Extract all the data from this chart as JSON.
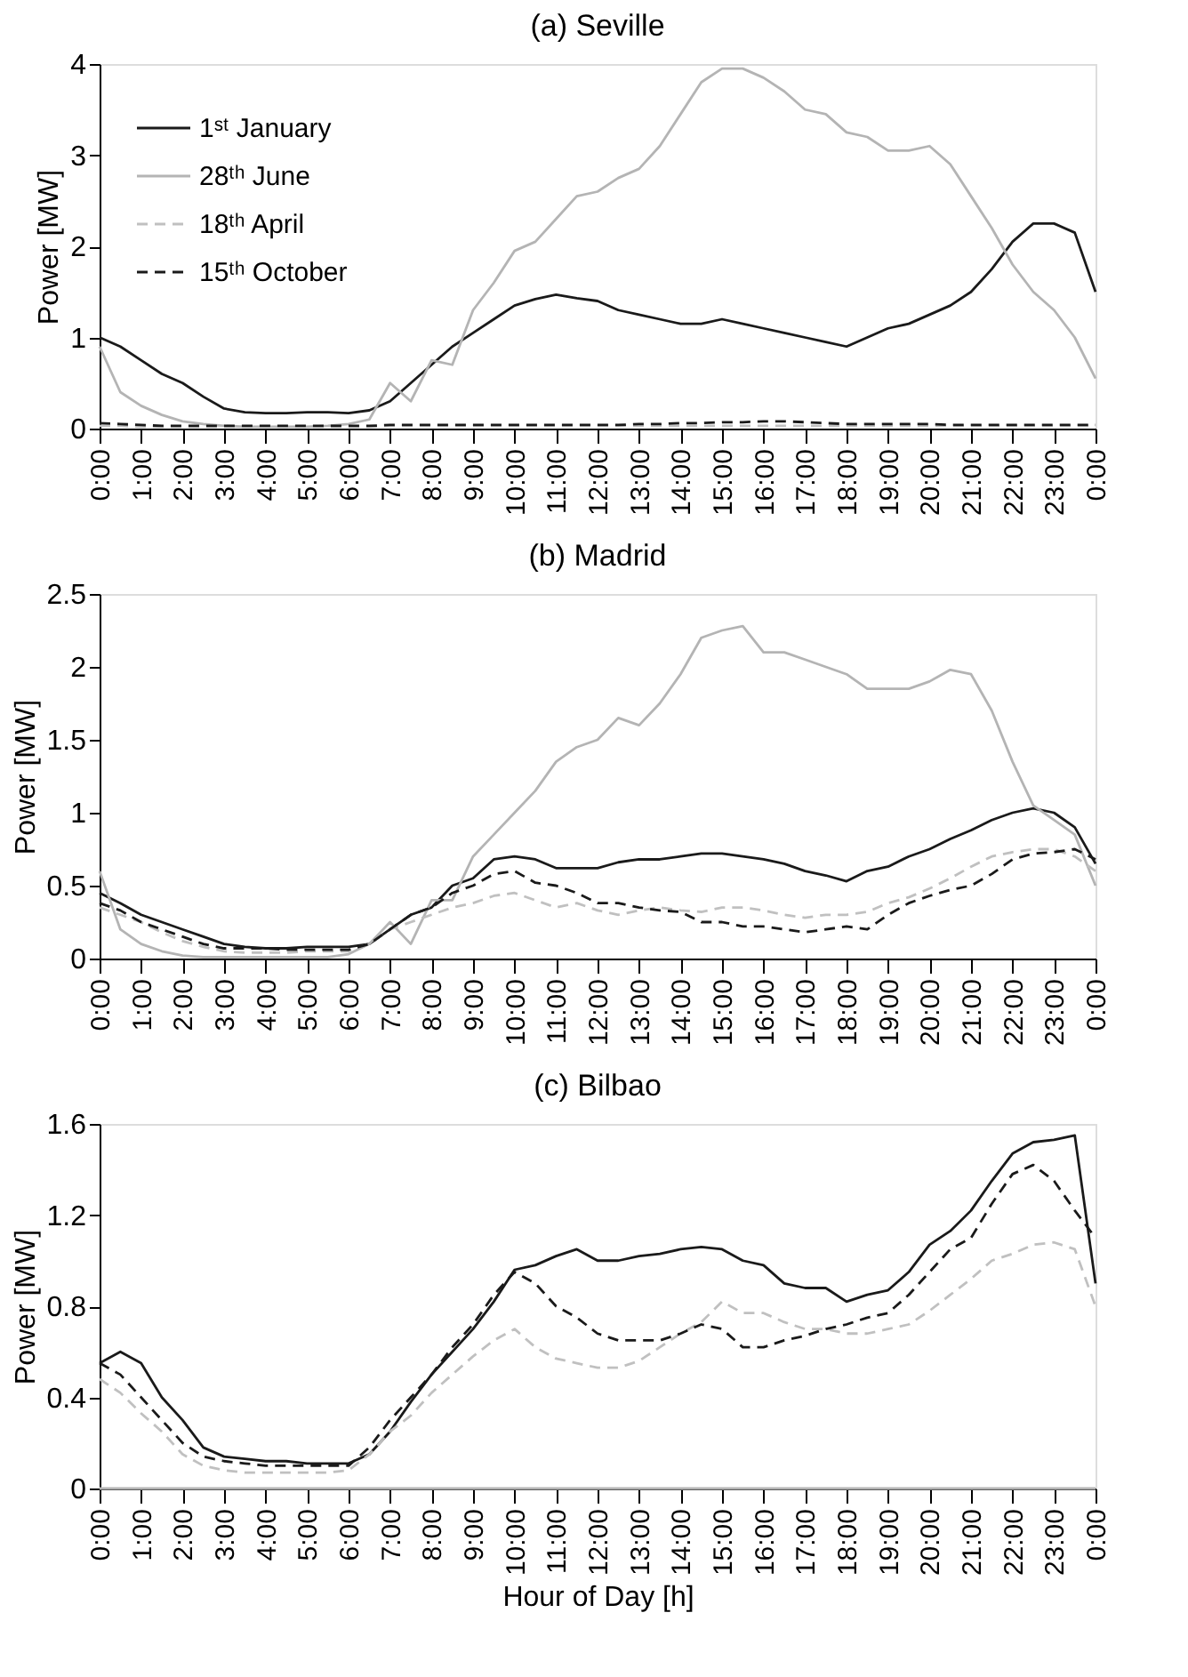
{
  "chart_data": [
    {
      "type": "line",
      "title": "(a) Seville",
      "ylabel": "Power [MW]",
      "legend": "top left",
      "grid": false,
      "tick_labels": "xy",
      "x": [
        0,
        0.5,
        1,
        1.5,
        2,
        2.5,
        3,
        3.5,
        4,
        4.5,
        5,
        5.5,
        6,
        6.5,
        7,
        7.5,
        8,
        8.5,
        9,
        9.5,
        10,
        10.5,
        11,
        11.5,
        12,
        12.5,
        13,
        13.5,
        14,
        14.5,
        15,
        15.5,
        16,
        16.5,
        17,
        17.5,
        18,
        18.5,
        19,
        19.5,
        20,
        20.5,
        21,
        21.5,
        22,
        22.5,
        23,
        23.5,
        24
      ],
      "xlim": [
        0,
        24
      ],
      "ylim": [
        0,
        4
      ],
      "yticks": [
        0,
        1,
        2,
        3,
        4
      ],
      "xticks": [
        {
          "value": 0,
          "label": "0:00"
        },
        {
          "value": 1,
          "label": "1:00"
        },
        {
          "value": 2,
          "label": "2:00"
        },
        {
          "value": 3,
          "label": "3:00"
        },
        {
          "value": 4,
          "label": "4:00"
        },
        {
          "value": 5,
          "label": "5:00"
        },
        {
          "value": 6,
          "label": "6:00"
        },
        {
          "value": 7,
          "label": "7:00"
        },
        {
          "value": 8,
          "label": "8:00"
        },
        {
          "value": 9,
          "label": "9:00"
        },
        {
          "value": 10,
          "label": "10:00"
        },
        {
          "value": 11,
          "label": "11:00"
        },
        {
          "value": 12,
          "label": "12:00"
        },
        {
          "value": 13,
          "label": "13:00"
        },
        {
          "value": 14,
          "label": "14:00"
        },
        {
          "value": 15,
          "label": "15:00"
        },
        {
          "value": 16,
          "label": "16:00"
        },
        {
          "value": 17,
          "label": "17:00"
        },
        {
          "value": 18,
          "label": "18:00"
        },
        {
          "value": 19,
          "label": "19:00"
        },
        {
          "value": 20,
          "label": "20:00"
        },
        {
          "value": 21,
          "label": "21:00"
        },
        {
          "value": 22,
          "label": "22:00"
        },
        {
          "value": 23,
          "label": "23:00"
        },
        {
          "value": 24,
          "label": "0:00"
        }
      ],
      "series": [
        {
          "name": "1ˢᵗ January",
          "color": "#1a1a1a",
          "line_style": "solid",
          "values": [
            1.0,
            0.9,
            0.75,
            0.6,
            0.5,
            0.35,
            0.22,
            0.18,
            0.17,
            0.17,
            0.18,
            0.18,
            0.17,
            0.2,
            0.3,
            0.5,
            0.7,
            0.9,
            1.05,
            1.2,
            1.35,
            1.42,
            1.47,
            1.43,
            1.4,
            1.3,
            1.25,
            1.2,
            1.15,
            1.15,
            1.2,
            1.15,
            1.1,
            1.05,
            1.0,
            0.95,
            0.9,
            1.0,
            1.1,
            1.15,
            1.25,
            1.35,
            1.5,
            1.75,
            2.05,
            2.25,
            2.25,
            2.15,
            1.5
          ]
        },
        {
          "name": "28ᵗʰ June",
          "color": "#b4b4b4",
          "line_style": "solid",
          "values": [
            0.9,
            0.4,
            0.25,
            0.15,
            0.08,
            0.05,
            0.03,
            0.02,
            0.02,
            0.02,
            0.02,
            0.03,
            0.05,
            0.1,
            0.5,
            0.3,
            0.75,
            0.7,
            1.3,
            1.6,
            1.95,
            2.05,
            2.3,
            2.55,
            2.6,
            2.75,
            2.85,
            3.1,
            3.45,
            3.8,
            3.95,
            3.95,
            3.85,
            3.7,
            3.5,
            3.45,
            3.25,
            3.2,
            3.05,
            3.05,
            3.1,
            2.9,
            2.55,
            2.2,
            1.8,
            1.5,
            1.3,
            1.0,
            0.55
          ]
        },
        {
          "name": "18ᵗʰ April",
          "color": "#c0c0c0",
          "line_style": "dashed",
          "values": [
            0.03,
            0.03,
            0.02,
            0.02,
            0.02,
            0.02,
            0.02,
            0.02,
            0.02,
            0.02,
            0.02,
            0.02,
            0.02,
            0.02,
            0.03,
            0.03,
            0.03,
            0.03,
            0.03,
            0.03,
            0.03,
            0.03,
            0.03,
            0.03,
            0.03,
            0.03,
            0.03,
            0.03,
            0.03,
            0.03,
            0.03,
            0.03,
            0.03,
            0.03,
            0.03,
            0.03,
            0.03,
            0.03,
            0.03,
            0.03,
            0.03,
            0.03,
            0.03,
            0.03,
            0.03,
            0.03,
            0.03,
            0.03,
            0.03
          ]
        },
        {
          "name": "15ᵗʰ October",
          "color": "#1a1a1a",
          "line_style": "dashed",
          "values": [
            0.06,
            0.05,
            0.04,
            0.03,
            0.03,
            0.03,
            0.03,
            0.03,
            0.03,
            0.03,
            0.03,
            0.03,
            0.03,
            0.03,
            0.04,
            0.04,
            0.04,
            0.04,
            0.04,
            0.04,
            0.04,
            0.04,
            0.04,
            0.04,
            0.04,
            0.04,
            0.05,
            0.05,
            0.06,
            0.06,
            0.07,
            0.07,
            0.08,
            0.08,
            0.07,
            0.06,
            0.05,
            0.05,
            0.05,
            0.05,
            0.05,
            0.04,
            0.04,
            0.04,
            0.04,
            0.04,
            0.04,
            0.04,
            0.04
          ]
        }
      ]
    },
    {
      "type": "line",
      "title": "(b) Madrid",
      "ylabel": "Power [MW]",
      "legend": "top left",
      "grid": false,
      "tick_labels": "xy",
      "x": [
        0,
        0.5,
        1,
        1.5,
        2,
        2.5,
        3,
        3.5,
        4,
        4.5,
        5,
        5.5,
        6,
        6.5,
        7,
        7.5,
        8,
        8.5,
        9,
        9.5,
        10,
        10.5,
        11,
        11.5,
        12,
        12.5,
        13,
        13.5,
        14,
        14.5,
        15,
        15.5,
        16,
        16.5,
        17,
        17.5,
        18,
        18.5,
        19,
        19.5,
        20,
        20.5,
        21,
        21.5,
        22,
        22.5,
        23,
        23.5,
        24
      ],
      "xlim": [
        0,
        24
      ],
      "ylim": [
        0,
        2.5
      ],
      "yticks": [
        0,
        0.5,
        1,
        1.5,
        2,
        2.5
      ],
      "xticks": [
        {
          "value": 0,
          "label": "0:00"
        },
        {
          "value": 1,
          "label": "1:00"
        },
        {
          "value": 2,
          "label": "2:00"
        },
        {
          "value": 3,
          "label": "3:00"
        },
        {
          "value": 4,
          "label": "4:00"
        },
        {
          "value": 5,
          "label": "5:00"
        },
        {
          "value": 6,
          "label": "6:00"
        },
        {
          "value": 7,
          "label": "7:00"
        },
        {
          "value": 8,
          "label": "8:00"
        },
        {
          "value": 9,
          "label": "9:00"
        },
        {
          "value": 10,
          "label": "10:00"
        },
        {
          "value": 11,
          "label": "11:00"
        },
        {
          "value": 12,
          "label": "12:00"
        },
        {
          "value": 13,
          "label": "13:00"
        },
        {
          "value": 14,
          "label": "14:00"
        },
        {
          "value": 15,
          "label": "15:00"
        },
        {
          "value": 16,
          "label": "16:00"
        },
        {
          "value": 17,
          "label": "17:00"
        },
        {
          "value": 18,
          "label": "18:00"
        },
        {
          "value": 19,
          "label": "19:00"
        },
        {
          "value": 20,
          "label": "20:00"
        },
        {
          "value": 21,
          "label": "21:00"
        },
        {
          "value": 22,
          "label": "22:00"
        },
        {
          "value": 23,
          "label": "23:00"
        },
        {
          "value": 24,
          "label": "0:00"
        }
      ],
      "series": [
        {
          "name": "1ˢᵗ January",
          "color": "#1a1a1a",
          "line_style": "solid",
          "values": [
            0.45,
            0.38,
            0.3,
            0.25,
            0.2,
            0.15,
            0.1,
            0.08,
            0.07,
            0.07,
            0.08,
            0.08,
            0.08,
            0.1,
            0.2,
            0.3,
            0.35,
            0.5,
            0.55,
            0.68,
            0.7,
            0.68,
            0.62,
            0.62,
            0.62,
            0.66,
            0.68,
            0.68,
            0.7,
            0.72,
            0.72,
            0.7,
            0.68,
            0.65,
            0.6,
            0.57,
            0.53,
            0.6,
            0.63,
            0.7,
            0.75,
            0.82,
            0.88,
            0.95,
            1.0,
            1.03,
            1.0,
            0.9,
            0.65
          ]
        },
        {
          "name": "28ᵗʰ June",
          "color": "#b4b4b4",
          "line_style": "solid",
          "values": [
            0.6,
            0.2,
            0.1,
            0.05,
            0.02,
            0.01,
            0.01,
            0.01,
            0.01,
            0.01,
            0.01,
            0.01,
            0.03,
            0.1,
            0.25,
            0.1,
            0.4,
            0.4,
            0.7,
            0.85,
            1.0,
            1.15,
            1.35,
            1.45,
            1.5,
            1.65,
            1.6,
            1.75,
            1.95,
            2.2,
            2.25,
            2.28,
            2.1,
            2.1,
            2.05,
            2.0,
            1.95,
            1.85,
            1.85,
            1.85,
            1.9,
            1.98,
            1.95,
            1.7,
            1.35,
            1.05,
            0.95,
            0.85,
            0.5
          ]
        },
        {
          "name": "18ᵗʰ April",
          "color": "#c0c0c0",
          "line_style": "dashed",
          "values": [
            0.35,
            0.3,
            0.25,
            0.18,
            0.12,
            0.08,
            0.05,
            0.04,
            0.04,
            0.04,
            0.05,
            0.05,
            0.05,
            0.1,
            0.2,
            0.25,
            0.3,
            0.35,
            0.38,
            0.43,
            0.45,
            0.4,
            0.35,
            0.38,
            0.33,
            0.3,
            0.33,
            0.35,
            0.33,
            0.32,
            0.35,
            0.35,
            0.33,
            0.3,
            0.28,
            0.3,
            0.3,
            0.32,
            0.38,
            0.42,
            0.48,
            0.55,
            0.63,
            0.7,
            0.73,
            0.75,
            0.75,
            0.7,
            0.6
          ]
        },
        {
          "name": "15ᵗʰ October",
          "color": "#1a1a1a",
          "line_style": "dashed",
          "values": [
            0.38,
            0.33,
            0.25,
            0.2,
            0.15,
            0.1,
            0.07,
            0.07,
            0.07,
            0.06,
            0.06,
            0.06,
            0.06,
            0.1,
            0.2,
            0.3,
            0.35,
            0.45,
            0.5,
            0.58,
            0.6,
            0.52,
            0.5,
            0.45,
            0.38,
            0.38,
            0.35,
            0.33,
            0.32,
            0.25,
            0.25,
            0.22,
            0.22,
            0.2,
            0.18,
            0.2,
            0.22,
            0.2,
            0.3,
            0.38,
            0.43,
            0.47,
            0.5,
            0.58,
            0.68,
            0.72,
            0.73,
            0.75,
            0.68
          ]
        }
      ]
    },
    {
      "type": "line",
      "title": "(c) Bilbao",
      "ylabel": "Power [MW]",
      "xlabel": "Hour of Day [h]",
      "legend": "top left",
      "grid": false,
      "x": [
        0,
        0.5,
        1,
        1.5,
        2,
        2.5,
        3,
        3.5,
        4,
        4.5,
        5,
        5.5,
        6,
        6.5,
        7,
        7.5,
        8,
        8.5,
        9,
        9.5,
        10,
        10.5,
        11,
        11.5,
        12,
        12.5,
        13,
        13.5,
        14,
        14.5,
        15,
        15.5,
        16,
        16.5,
        17,
        17.5,
        18,
        18.5,
        19,
        19.5,
        20,
        20.5,
        21,
        21.5,
        22,
        22.5,
        23,
        23.5,
        24
      ],
      "xlim": [
        0,
        24
      ],
      "ylim": [
        0,
        1.6
      ],
      "yticks": [
        0,
        0.4,
        0.8,
        1.2,
        1.6
      ],
      "xticks": [
        {
          "value": 0,
          "label": "0:00"
        },
        {
          "value": 1,
          "label": "1:00"
        },
        {
          "value": 2,
          "label": "2:00"
        },
        {
          "value": 3,
          "label": "3:00"
        },
        {
          "value": 4,
          "label": "4:00"
        },
        {
          "value": 5,
          "label": "5:00"
        },
        {
          "value": 6,
          "label": "6:00"
        },
        {
          "value": 7,
          "label": "7:00"
        },
        {
          "value": 8,
          "label": "8:00"
        },
        {
          "value": 9,
          "label": "9:00"
        },
        {
          "value": 10,
          "label": "10:00"
        },
        {
          "value": 11,
          "label": "11:00"
        },
        {
          "value": 12,
          "label": "12:00"
        },
        {
          "value": 13,
          "label": "13:00"
        },
        {
          "value": 14,
          "label": "14:00"
        },
        {
          "value": 15,
          "label": "15:00"
        },
        {
          "value": 16,
          "label": "16:00"
        },
        {
          "value": 17,
          "label": "17:00"
        },
        {
          "value": 18,
          "label": "18:00"
        },
        {
          "value": 19,
          "label": "19:00"
        },
        {
          "value": 20,
          "label": "20:00"
        },
        {
          "value": 21,
          "label": "21:00"
        },
        {
          "value": 22,
          "label": "22:00"
        },
        {
          "value": 23,
          "label": "23:00"
        },
        {
          "value": 24,
          "label": "0:00"
        }
      ],
      "series": [
        {
          "name": "1ˢᵗ January",
          "color": "#1a1a1a",
          "line_style": "solid",
          "values": [
            0.55,
            0.6,
            0.55,
            0.4,
            0.3,
            0.18,
            0.14,
            0.13,
            0.12,
            0.12,
            0.11,
            0.11,
            0.11,
            0.15,
            0.25,
            0.38,
            0.5,
            0.6,
            0.7,
            0.82,
            0.96,
            0.98,
            1.02,
            1.05,
            1.0,
            1.0,
            1.02,
            1.03,
            1.05,
            1.06,
            1.05,
            1.0,
            0.98,
            0.9,
            0.88,
            0.88,
            0.82,
            0.85,
            0.87,
            0.95,
            1.07,
            1.13,
            1.22,
            1.35,
            1.47,
            1.52,
            1.53,
            1.55,
            0.9
          ]
        },
        {
          "name": "28ᵗʰ June",
          "color": "#b4b4b4",
          "line_style": "solid",
          "values": [
            0,
            0,
            0,
            0,
            0,
            0,
            0,
            0,
            0,
            0,
            0,
            0,
            0,
            0,
            0,
            0,
            0,
            0,
            0,
            0,
            0,
            0,
            0,
            0,
            0,
            0,
            0,
            0,
            0,
            0,
            0,
            0,
            0,
            0,
            0,
            0,
            0,
            0,
            0,
            0,
            0,
            0,
            0,
            0,
            0,
            0,
            0,
            0,
            0
          ]
        },
        {
          "name": "18ᵗʰ April",
          "color": "#c0c0c0",
          "line_style": "dashed",
          "values": [
            0.48,
            0.42,
            0.33,
            0.25,
            0.15,
            0.1,
            0.08,
            0.07,
            0.07,
            0.07,
            0.07,
            0.07,
            0.08,
            0.15,
            0.25,
            0.32,
            0.42,
            0.5,
            0.58,
            0.65,
            0.7,
            0.62,
            0.57,
            0.55,
            0.53,
            0.53,
            0.56,
            0.62,
            0.68,
            0.73,
            0.82,
            0.77,
            0.77,
            0.73,
            0.7,
            0.7,
            0.68,
            0.68,
            0.7,
            0.72,
            0.78,
            0.85,
            0.92,
            1.0,
            1.03,
            1.07,
            1.08,
            1.05,
            0.8
          ]
        },
        {
          "name": "15ᵗʰ October",
          "color": "#1a1a1a",
          "line_style": "dashed",
          "values": [
            0.55,
            0.5,
            0.4,
            0.3,
            0.2,
            0.14,
            0.12,
            0.11,
            0.1,
            0.1,
            0.1,
            0.1,
            0.1,
            0.18,
            0.3,
            0.4,
            0.5,
            0.62,
            0.72,
            0.85,
            0.95,
            0.9,
            0.8,
            0.75,
            0.68,
            0.65,
            0.65,
            0.65,
            0.68,
            0.72,
            0.7,
            0.62,
            0.62,
            0.65,
            0.67,
            0.7,
            0.72,
            0.75,
            0.77,
            0.85,
            0.95,
            1.05,
            1.1,
            1.25,
            1.38,
            1.42,
            1.35,
            1.22,
            1.1
          ]
        }
      ]
    }
  ]
}
